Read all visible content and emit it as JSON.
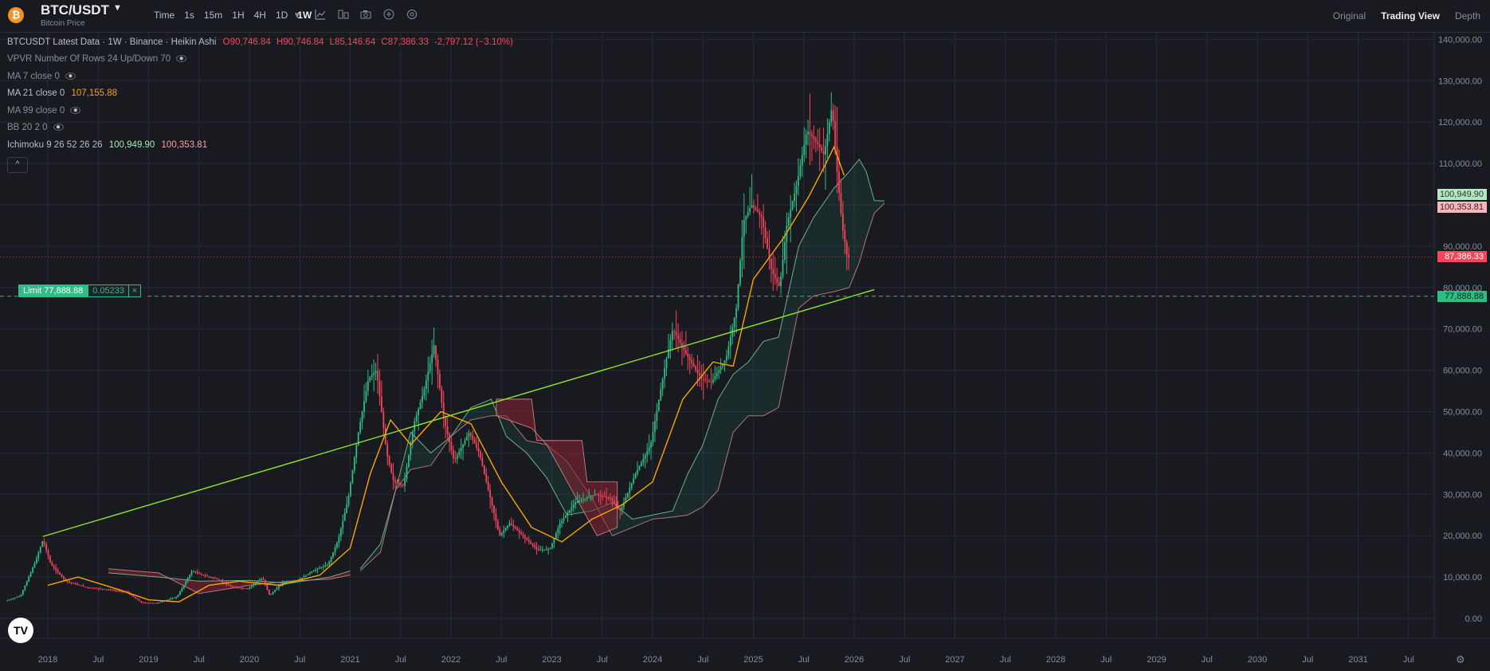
{
  "header": {
    "coin_icon": "bitcoin-icon",
    "coin_glyph": "₿",
    "symbol": "BTC/USDT",
    "subtitle": "Bitcoin Price",
    "intervals": [
      "Time",
      "1s",
      "15m",
      "1H",
      "4H",
      "1D",
      "1W"
    ],
    "active_interval": "1W",
    "tools": [
      "chevron-down-icon",
      "indicators-icon",
      "layout-icon",
      "camera-icon",
      "add-icon",
      "settings-icon"
    ],
    "views": [
      "Original",
      "Trading View",
      "Depth"
    ],
    "active_view": "Trading View"
  },
  "legend": {
    "main_label": "BTCUSDT Latest Data · 1W · Binance · Heikin Ashi",
    "open": "O90,746.84",
    "high": "H90,746.84",
    "low": "L85,146.64",
    "close": "C87,386.33",
    "change": "-2,797.12 (−3.10%)",
    "vpvr": "VPVR Number Of Rows 24 Up/Down 70",
    "ma7": "MA 7 close 0",
    "ma21": "MA 21 close 0",
    "ma21_value": "107,155.88",
    "ma99": "MA 99 close 0",
    "bb": "BB 20 2 0",
    "ichimoku": "Ichimoku 9 26 52 26 26",
    "ichimoku_a": "100,949.90",
    "ichimoku_b": "100,353.81",
    "collapse_glyph": "^"
  },
  "order": {
    "label": "Limit 77,888.88",
    "qty": "0.05233",
    "close_glyph": "×"
  },
  "price_labels": {
    "ichimoku_a": "100,949.90",
    "ichimoku_b": "100,353.81",
    "last": "87,386.33",
    "limit": "77,888.88"
  },
  "colors": {
    "up": "#2ebd85",
    "down": "#f6465d",
    "ma21": "#f7a600",
    "trend": "#8ee62e",
    "cloud_green": "#2ebd85",
    "cloud_red": "#8b2432"
  },
  "logo": "TV",
  "chart_data": {
    "type": "candlestick",
    "y_ticks": [
      "140,000.00",
      "130,000.00",
      "120,000.00",
      "110,000.00",
      "100,000.00",
      "90,000.00",
      "80,000.00",
      "70,000.00",
      "60,000.00",
      "50,000.00",
      "40,000.00",
      "30,000.00",
      "20,000.00",
      "10,000.00",
      "0.00"
    ],
    "ylim": [
      -10000,
      140000
    ],
    "x_ticks": [
      "2018",
      "Jul",
      "2019",
      "Jul",
      "2020",
      "Jul",
      "2021",
      "Jul",
      "2022",
      "Jul",
      "2023",
      "Jul",
      "2024",
      "Jul",
      "2025",
      "Jul",
      "2026",
      "Jul",
      "2027",
      "Jul",
      "2028",
      "Jul",
      "2029",
      "Jul",
      "2030",
      "Jul",
      "2031",
      "Jul"
    ],
    "x_years": [
      2018,
      2018.5,
      2019,
      2019.5,
      2020,
      2020.5,
      2021,
      2021.5,
      2022,
      2022.5,
      2023,
      2023.5,
      2024,
      2024.5,
      2025,
      2025.5,
      2026,
      2026.5,
      2027,
      2027.5,
      2028,
      2028.5,
      2029,
      2029.5,
      2030,
      2030.5,
      2031,
      2031.5
    ],
    "price_path": [
      [
        2017.6,
        4200
      ],
      [
        2017.75,
        5500
      ],
      [
        2017.9,
        14000
      ],
      [
        2017.97,
        19000
      ],
      [
        2018.05,
        13000
      ],
      [
        2018.2,
        9000
      ],
      [
        2018.4,
        7500
      ],
      [
        2018.6,
        7000
      ],
      [
        2018.8,
        6400
      ],
      [
        2018.95,
        3800
      ],
      [
        2019.1,
        3700
      ],
      [
        2019.3,
        5200
      ],
      [
        2019.45,
        11500
      ],
      [
        2019.55,
        10500
      ],
      [
        2019.7,
        9500
      ],
      [
        2019.85,
        7500
      ],
      [
        2020.0,
        7200
      ],
      [
        2020.15,
        9800
      ],
      [
        2020.22,
        5500
      ],
      [
        2020.35,
        8800
      ],
      [
        2020.5,
        9200
      ],
      [
        2020.65,
        11500
      ],
      [
        2020.8,
        13000
      ],
      [
        2020.9,
        19000
      ],
      [
        2021.0,
        29000
      ],
      [
        2021.1,
        45000
      ],
      [
        2021.2,
        58000
      ],
      [
        2021.28,
        60000
      ],
      [
        2021.38,
        40000
      ],
      [
        2021.45,
        33000
      ],
      [
        2021.55,
        32000
      ],
      [
        2021.65,
        47000
      ],
      [
        2021.75,
        55000
      ],
      [
        2021.85,
        66000
      ],
      [
        2021.95,
        48000
      ],
      [
        2022.05,
        38000
      ],
      [
        2022.2,
        45000
      ],
      [
        2022.3,
        40000
      ],
      [
        2022.4,
        30000
      ],
      [
        2022.5,
        20000
      ],
      [
        2022.6,
        23000
      ],
      [
        2022.75,
        19500
      ],
      [
        2022.88,
        16500
      ],
      [
        2023.0,
        16800
      ],
      [
        2023.1,
        23000
      ],
      [
        2023.25,
        28000
      ],
      [
        2023.45,
        30000
      ],
      [
        2023.6,
        29000
      ],
      [
        2023.7,
        26000
      ],
      [
        2023.85,
        35000
      ],
      [
        2024.0,
        42000
      ],
      [
        2024.15,
        62000
      ],
      [
        2024.22,
        70000
      ],
      [
        2024.35,
        64000
      ],
      [
        2024.5,
        58000
      ],
      [
        2024.6,
        57000
      ],
      [
        2024.75,
        63000
      ],
      [
        2024.85,
        75000
      ],
      [
        2024.92,
        96000
      ],
      [
        2025.0,
        100000
      ],
      [
        2025.1,
        97000
      ],
      [
        2025.2,
        84000
      ],
      [
        2025.28,
        80000
      ],
      [
        2025.35,
        95000
      ],
      [
        2025.45,
        105000
      ],
      [
        2025.55,
        118000
      ],
      [
        2025.65,
        115000
      ],
      [
        2025.72,
        112000
      ],
      [
        2025.8,
        124000
      ],
      [
        2025.85,
        108000
      ],
      [
        2025.9,
        95000
      ],
      [
        2025.95,
        87386
      ]
    ],
    "ma21": [
      [
        2018.0,
        8000
      ],
      [
        2018.3,
        10000
      ],
      [
        2018.7,
        7000
      ],
      [
        2019.0,
        4500
      ],
      [
        2019.3,
        4000
      ],
      [
        2019.6,
        8000
      ],
      [
        2019.9,
        9000
      ],
      [
        2020.3,
        8000
      ],
      [
        2020.7,
        10500
      ],
      [
        2021.0,
        17000
      ],
      [
        2021.2,
        35000
      ],
      [
        2021.4,
        48000
      ],
      [
        2021.6,
        42000
      ],
      [
        2021.9,
        50000
      ],
      [
        2022.2,
        47000
      ],
      [
        2022.5,
        33000
      ],
      [
        2022.8,
        22000
      ],
      [
        2023.1,
        18500
      ],
      [
        2023.4,
        24000
      ],
      [
        2023.7,
        27500
      ],
      [
        2024.0,
        33000
      ],
      [
        2024.3,
        53000
      ],
      [
        2024.6,
        62000
      ],
      [
        2024.8,
        61000
      ],
      [
        2025.0,
        82000
      ],
      [
        2025.3,
        92000
      ],
      [
        2025.55,
        102000
      ],
      [
        2025.72,
        110000
      ],
      [
        2025.8,
        114000
      ],
      [
        2025.9,
        107156
      ]
    ],
    "trend_line": [
      [
        2017.95,
        19800
      ],
      [
        2026.2,
        79500
      ]
    ],
    "cloud": [
      {
        "a": [
          [
            2018.6,
            11000
          ],
          [
            2019.1,
            10000
          ],
          [
            2019.5,
            9000
          ],
          [
            2020.0,
            9200
          ],
          [
            2020.4,
            8500
          ],
          [
            2020.8,
            10000
          ],
          [
            2021.0,
            11500
          ]
        ],
        "b": [
          [
            2018.6,
            12000
          ],
          [
            2019.1,
            11000
          ],
          [
            2019.5,
            6000
          ],
          [
            2020.0,
            8000
          ],
          [
            2020.4,
            9000
          ],
          [
            2020.8,
            9500
          ],
          [
            2021.0,
            10500
          ]
        ]
      },
      {
        "a": [
          [
            2021.1,
            12000
          ],
          [
            2021.3,
            18000
          ],
          [
            2021.45,
            31000
          ],
          [
            2021.6,
            45000
          ],
          [
            2021.8,
            40000
          ],
          [
            2022.0,
            44000
          ],
          [
            2022.2,
            51000
          ],
          [
            2022.4,
            53000
          ],
          [
            2022.55,
            44000
          ],
          [
            2022.75,
            40000
          ],
          [
            2022.95,
            34000
          ],
          [
            2023.15,
            25000
          ],
          [
            2023.4,
            26000
          ],
          [
            2023.6,
            28000
          ],
          [
            2023.8,
            24000
          ],
          [
            2024.0,
            25000
          ],
          [
            2024.2,
            26000
          ],
          [
            2024.35,
            35000
          ],
          [
            2024.5,
            42000
          ],
          [
            2024.65,
            53000
          ],
          [
            2024.8,
            59000
          ],
          [
            2024.95,
            62000
          ],
          [
            2025.1,
            67000
          ],
          [
            2025.25,
            68000
          ],
          [
            2025.45,
            90000
          ],
          [
            2025.6,
            97000
          ],
          [
            2025.8,
            104000
          ],
          [
            2025.95,
            108000
          ],
          [
            2026.05,
            111000
          ],
          [
            2026.12,
            108000
          ],
          [
            2026.2,
            101000
          ],
          [
            2026.3,
            100950
          ]
        ],
        "b": [
          [
            2021.1,
            11500
          ],
          [
            2021.3,
            16000
          ],
          [
            2021.45,
            31000
          ],
          [
            2021.6,
            36000
          ],
          [
            2021.8,
            37000
          ],
          [
            2022.0,
            44000
          ],
          [
            2022.2,
            48000
          ],
          [
            2022.4,
            49000
          ],
          [
            2022.55,
            49000
          ],
          [
            2022.75,
            43000
          ],
          [
            2022.95,
            42000
          ],
          [
            2023.15,
            38000
          ],
          [
            2023.4,
            29000
          ],
          [
            2023.6,
            20000
          ],
          [
            2023.8,
            22000
          ],
          [
            2024.0,
            24000
          ],
          [
            2024.2,
            24500
          ],
          [
            2024.35,
            25000
          ],
          [
            2024.5,
            27000
          ],
          [
            2024.65,
            31000
          ],
          [
            2024.8,
            45000
          ],
          [
            2024.95,
            49000
          ],
          [
            2025.1,
            49000
          ],
          [
            2025.25,
            51000
          ],
          [
            2025.45,
            75000
          ],
          [
            2025.6,
            78000
          ],
          [
            2025.8,
            79000
          ],
          [
            2025.95,
            80000
          ],
          [
            2026.05,
            86000
          ],
          [
            2026.12,
            92000
          ],
          [
            2026.2,
            98000
          ],
          [
            2026.3,
            100354
          ]
        ]
      }
    ],
    "last_price": 87386.33,
    "limit_price": 77888.88
  }
}
